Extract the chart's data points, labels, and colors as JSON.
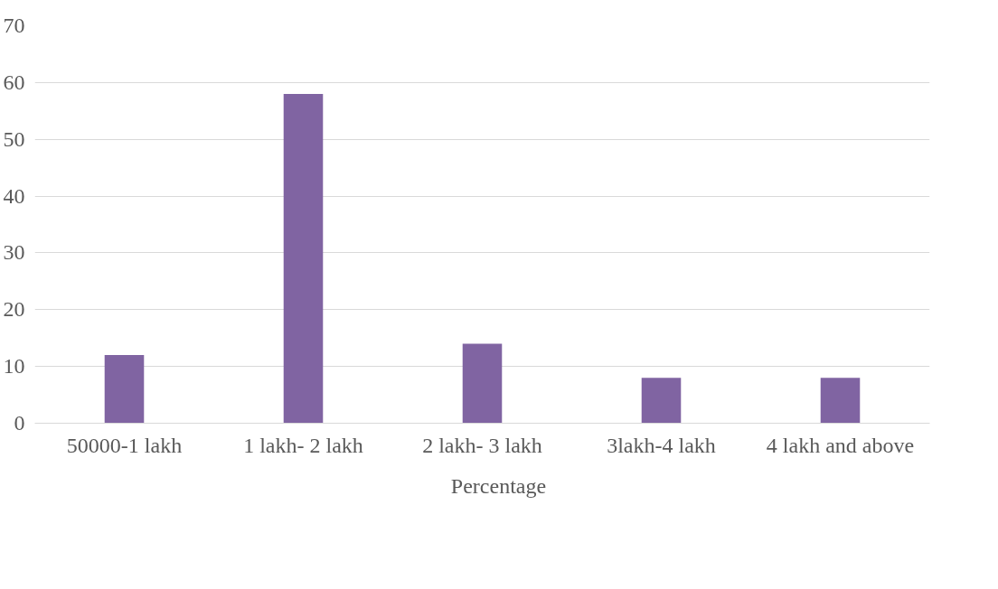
{
  "chart_data": {
    "type": "bar",
    "categories": [
      "50000-1 lakh",
      "1 lakh- 2 lakh",
      "2 lakh- 3 lakh",
      "3lakh-4 lakh",
      "4 lakh and above"
    ],
    "series": [
      {
        "name": "Percentage",
        "color": "#8064a2",
        "values": [
          12,
          58,
          14,
          8,
          8
        ]
      }
    ],
    "ylim": [
      0,
      70
    ],
    "yticks": [
      0,
      10,
      20,
      30,
      40,
      50,
      60,
      70
    ],
    "grid": "y",
    "legend": "bottom"
  }
}
